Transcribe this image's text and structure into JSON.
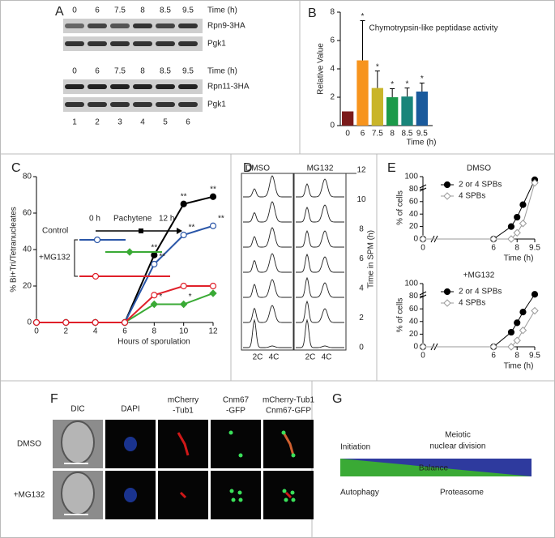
{
  "figure": {
    "panel_letters": [
      "A",
      "B",
      "C",
      "D",
      "E",
      "F",
      "G"
    ]
  },
  "panel_a": {
    "time_label": "Time (h)",
    "times": [
      "0",
      "6",
      "7.5",
      "8",
      "8.5",
      "9.5"
    ],
    "blots": [
      [
        "Rpn9-3HA",
        "Pgk1"
      ],
      [
        "Rpn11-3HA",
        "Pgk1"
      ]
    ],
    "lanes": [
      "1",
      "2",
      "3",
      "4",
      "5",
      "6"
    ]
  },
  "chart_data": [
    {
      "type": "bar",
      "title": "Chymotrypsin-like peptidase activity",
      "ylabel": "Relative Value",
      "xlabel": "Time (h)",
      "categories": [
        "0",
        "6",
        "7.5",
        "8",
        "8.5",
        "9.5"
      ],
      "values": [
        1,
        4.6,
        2.65,
        2.0,
        2.05,
        2.4
      ],
      "errors": [
        null,
        2.8,
        1.2,
        0.6,
        0.6,
        0.6
      ],
      "significance": [
        null,
        "*",
        "*",
        "*",
        "*",
        "*"
      ],
      "colors": [
        "#7b1a1a",
        "#f7941d",
        "#c9b52a",
        "#1c9a4a",
        "#19857a",
        "#1a5a9c"
      ],
      "ylim": [
        0,
        8
      ],
      "yticks": [
        0,
        2,
        4,
        6,
        8
      ]
    },
    {
      "type": "line",
      "ylabel": "% Bi+Tri/Tetranucleates",
      "xlabel": "Hours of sporulation",
      "x": [
        0,
        2,
        4,
        6,
        8,
        10,
        12
      ],
      "xlim": [
        0,
        12
      ],
      "xticks": [
        0,
        2,
        4,
        6,
        8,
        10,
        12
      ],
      "ylim": [
        0,
        80
      ],
      "yticks": [
        0,
        20,
        40,
        60,
        80
      ],
      "legend": {
        "control": "Control",
        "treatment": "+MG132",
        "start": "0 h",
        "stage": "Pachytene",
        "end": "12 h"
      },
      "series": [
        {
          "color": "#000000",
          "marker": "circle-filled",
          "values": [
            0,
            0,
            0,
            0,
            37,
            65,
            69
          ],
          "point_labels": [
            null,
            null,
            null,
            null,
            "**",
            "**",
            "**"
          ]
        },
        {
          "color": "#2a56a8",
          "marker": "circle-open",
          "values": [
            0,
            0,
            0,
            0,
            32,
            48,
            53
          ],
          "point_labels": [
            null,
            null,
            null,
            null,
            "**",
            "**",
            "**"
          ]
        },
        {
          "color": "#3aaa35",
          "marker": "diamond-filled",
          "values": [
            0,
            0,
            0,
            0,
            10,
            10,
            16
          ],
          "point_labels": [
            null,
            null,
            null,
            null,
            "*",
            "*",
            null
          ]
        },
        {
          "color": "#e0202a",
          "marker": "circle-open",
          "values": [
            0,
            0,
            0,
            0,
            15,
            20,
            20
          ],
          "point_labels": [
            null,
            null,
            null,
            null,
            null,
            null,
            null
          ]
        }
      ]
    },
    {
      "type": "line",
      "title": "DMSO",
      "ylabel": "% of cells",
      "xlabel": "Time (h)",
      "x": [
        0,
        6,
        7.5,
        8,
        8.5,
        9.5
      ],
      "xlim": [
        0,
        9.5
      ],
      "xticks": [
        0,
        6,
        8,
        9.5
      ],
      "ylim": [
        0,
        100
      ],
      "yticks": [
        0,
        20,
        40,
        60,
        80,
        100
      ],
      "legend": "upper left",
      "series": [
        {
          "name": "2 or 4 SPBs",
          "color": "#000000",
          "marker": "circle-filled",
          "values": [
            0,
            0,
            20,
            35,
            55,
            95
          ]
        },
        {
          "name": "4 SPBs",
          "color": "#999999",
          "marker": "diamond-open",
          "values": [
            0,
            0,
            0,
            10,
            25,
            90
          ]
        }
      ]
    },
    {
      "type": "line",
      "title": "+MG132",
      "ylabel": "% of cells",
      "xlabel": "Time (h)",
      "x": [
        0,
        6,
        7.5,
        8,
        8.5,
        9.5
      ],
      "xlim": [
        0,
        9.5
      ],
      "xticks": [
        0,
        6,
        8,
        9.5
      ],
      "ylim": [
        0,
        100
      ],
      "yticks": [
        0,
        20,
        40,
        60,
        80,
        100
      ],
      "legend": "upper left",
      "series": [
        {
          "name": "2 or 4 SPBs",
          "color": "#000000",
          "marker": "circle-filled",
          "values": [
            0,
            0,
            23,
            38,
            55,
            83
          ]
        },
        {
          "name": "4 SPBs",
          "color": "#999999",
          "marker": "diamond-open",
          "values": [
            0,
            0,
            0,
            10,
            26,
            57
          ]
        }
      ]
    }
  ],
  "panel_d": {
    "conditions": [
      "DMSO",
      "MG132"
    ],
    "time_label": "Time in SPM (h)",
    "times": [
      12,
      10,
      8,
      6,
      4,
      2,
      0
    ],
    "dna_labels": [
      "2C",
      "4C"
    ]
  },
  "panel_f": {
    "columns": [
      [
        "DIC"
      ],
      [
        "DAPI"
      ],
      [
        "mCherry",
        "-Tub1"
      ],
      [
        "Cnm67",
        "-GFP"
      ],
      [
        "mCherry-Tub1",
        "Cnm67-GFP"
      ]
    ],
    "rows": [
      "DMSO",
      "+MG132"
    ]
  },
  "panel_g": {
    "top_left": "Initiation",
    "top_right": [
      "Meiotic",
      "nuclear division"
    ],
    "center": "Balance",
    "bottom_left": "Autophagy",
    "bottom_right": "Proteasome"
  }
}
